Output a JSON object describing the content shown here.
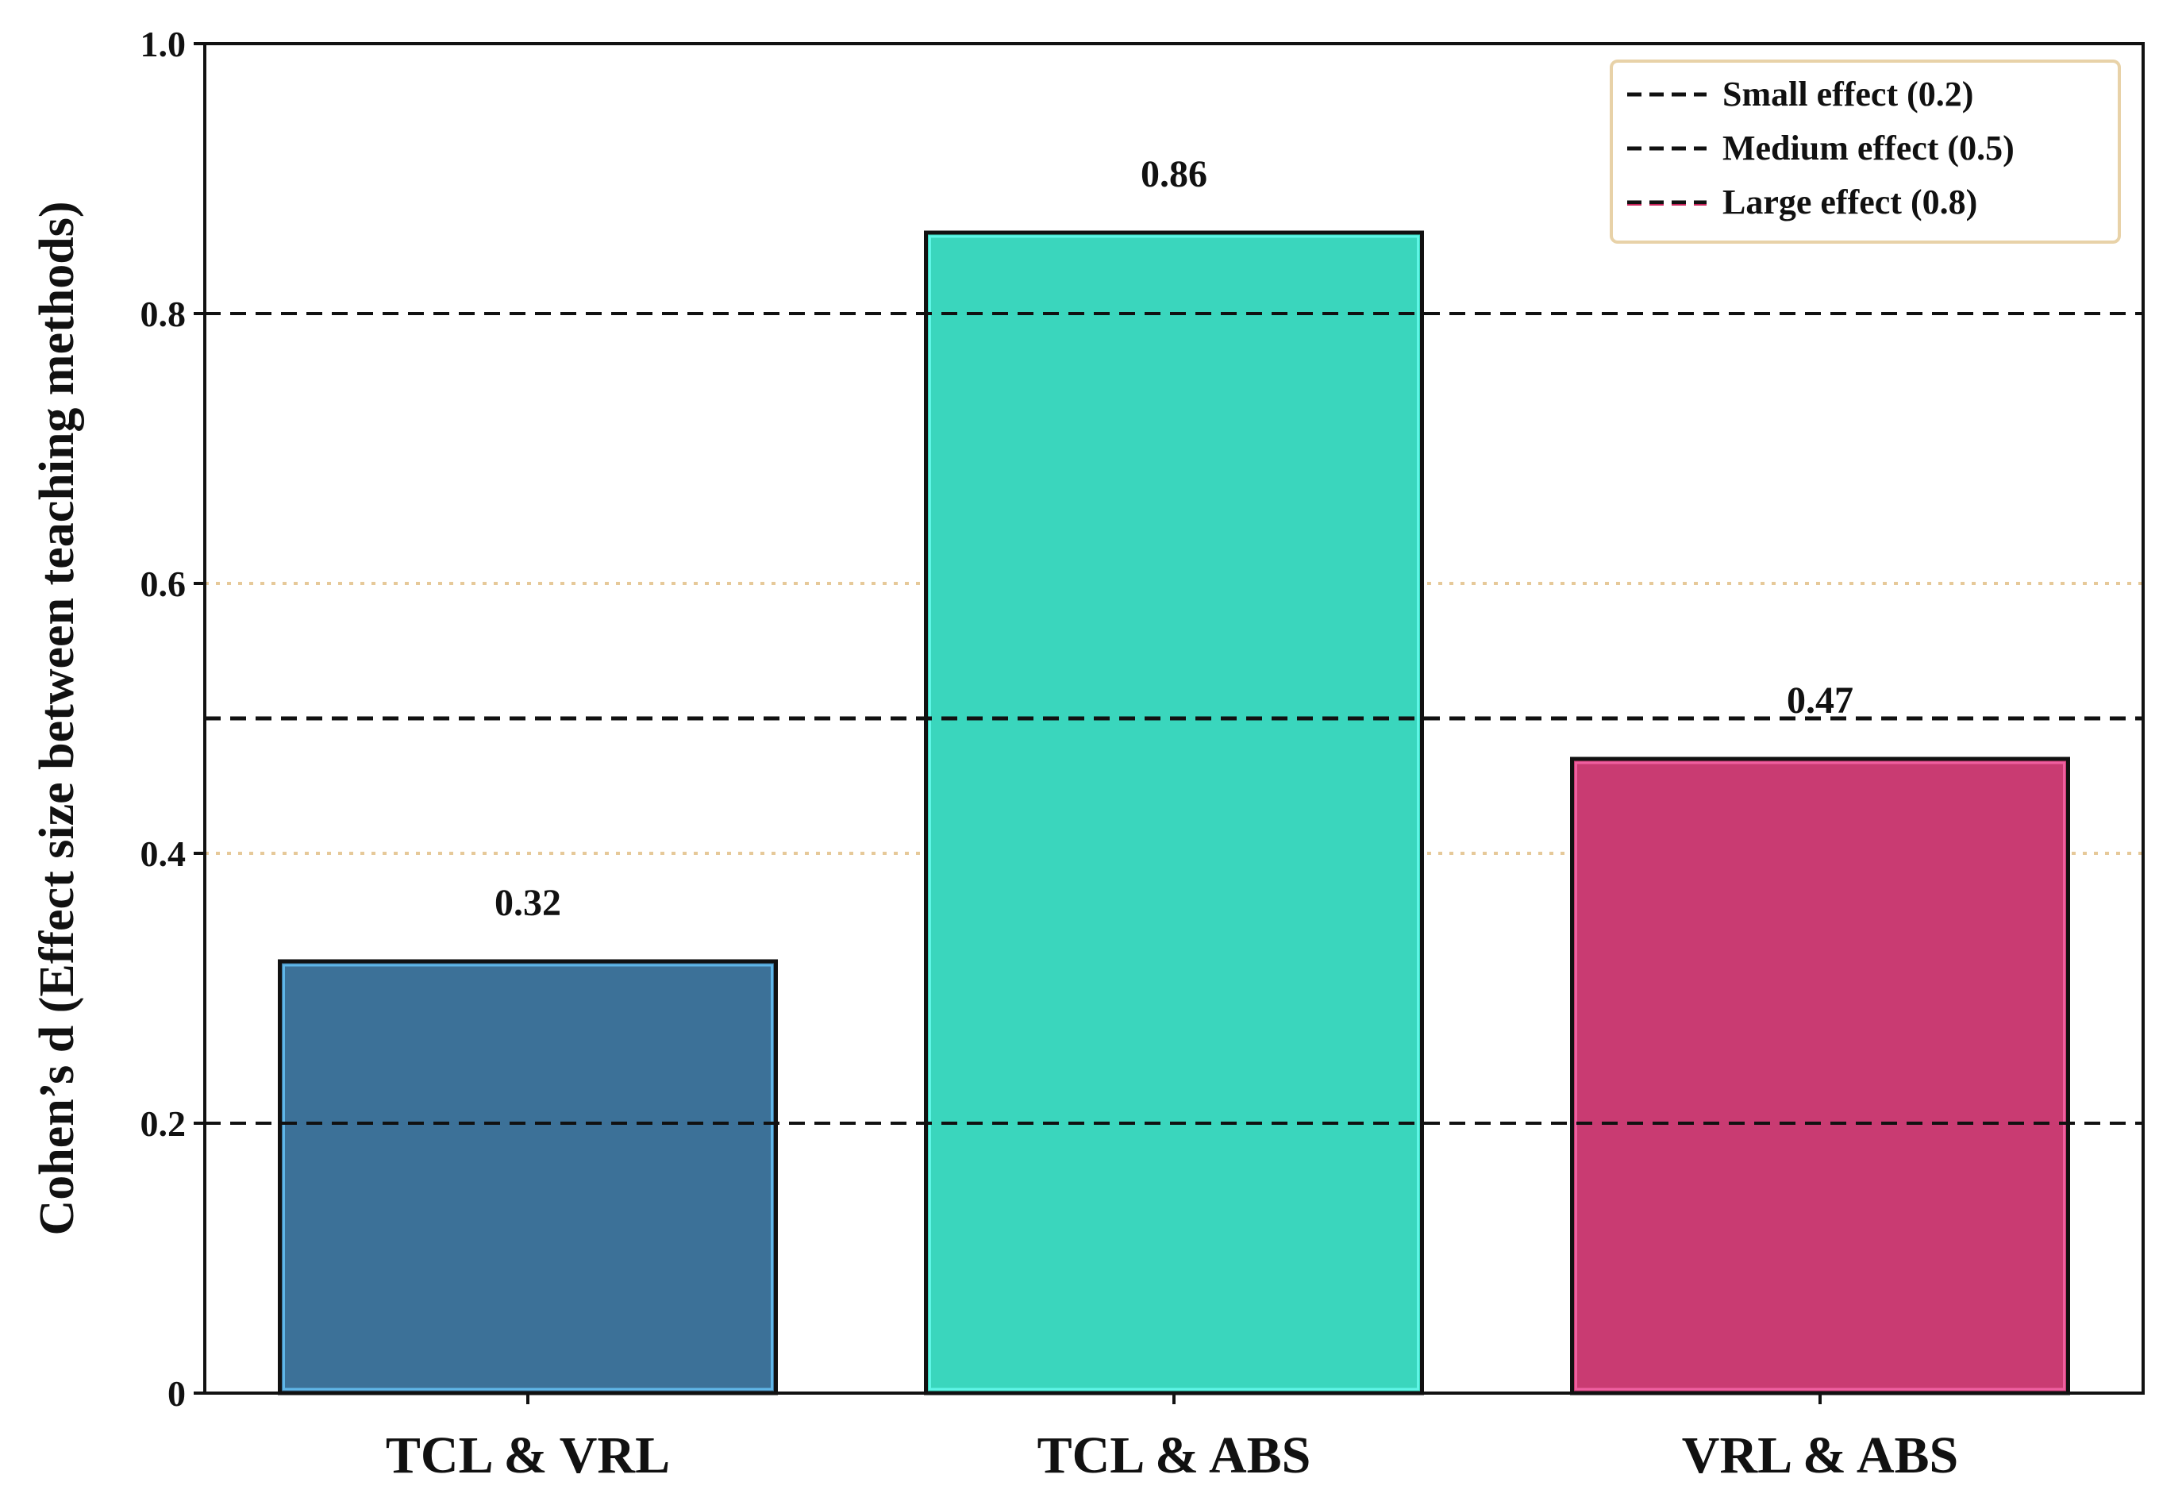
{
  "chart_data": {
    "type": "bar",
    "title": "",
    "xlabel": "",
    "ylabel": "Cohen’s d (Effect size between teaching methods)",
    "ylim": [
      0,
      1.0
    ],
    "yticks": [
      0,
      0.2,
      0.4,
      0.6,
      0.8,
      1.0
    ],
    "ytick_labels": [
      "0",
      "0.2",
      "0.4",
      "0.6",
      "0.8",
      "1.0"
    ],
    "categories": [
      "TCL & VRL",
      "TCL & ABS",
      "VRL & ABS"
    ],
    "values": [
      0.32,
      0.86,
      0.47
    ],
    "data_labels": [
      "0.32",
      "0.86",
      "0.47"
    ],
    "bar_colors": [
      "#3c7198",
      "#3ad6bd",
      "#c93b72"
    ],
    "bar_edge_colors": [
      "#5fb6e8",
      "#5ff5e6",
      "#ef5fa0"
    ],
    "reference_lines": [
      {
        "label": "Small effect (0.2)",
        "value": 0.2,
        "color": "#111111"
      },
      {
        "label": "Medium effect (0.5)",
        "value": 0.5,
        "color": "#111111"
      },
      {
        "label": "Large effect (0.8)",
        "value": 0.8,
        "color": "#111111",
        "dash_accent": "#c9245b"
      }
    ],
    "minor_grid": {
      "values": [
        0.4,
        0.6
      ],
      "color": "#e6c999"
    },
    "legend_position": "top-right"
  }
}
